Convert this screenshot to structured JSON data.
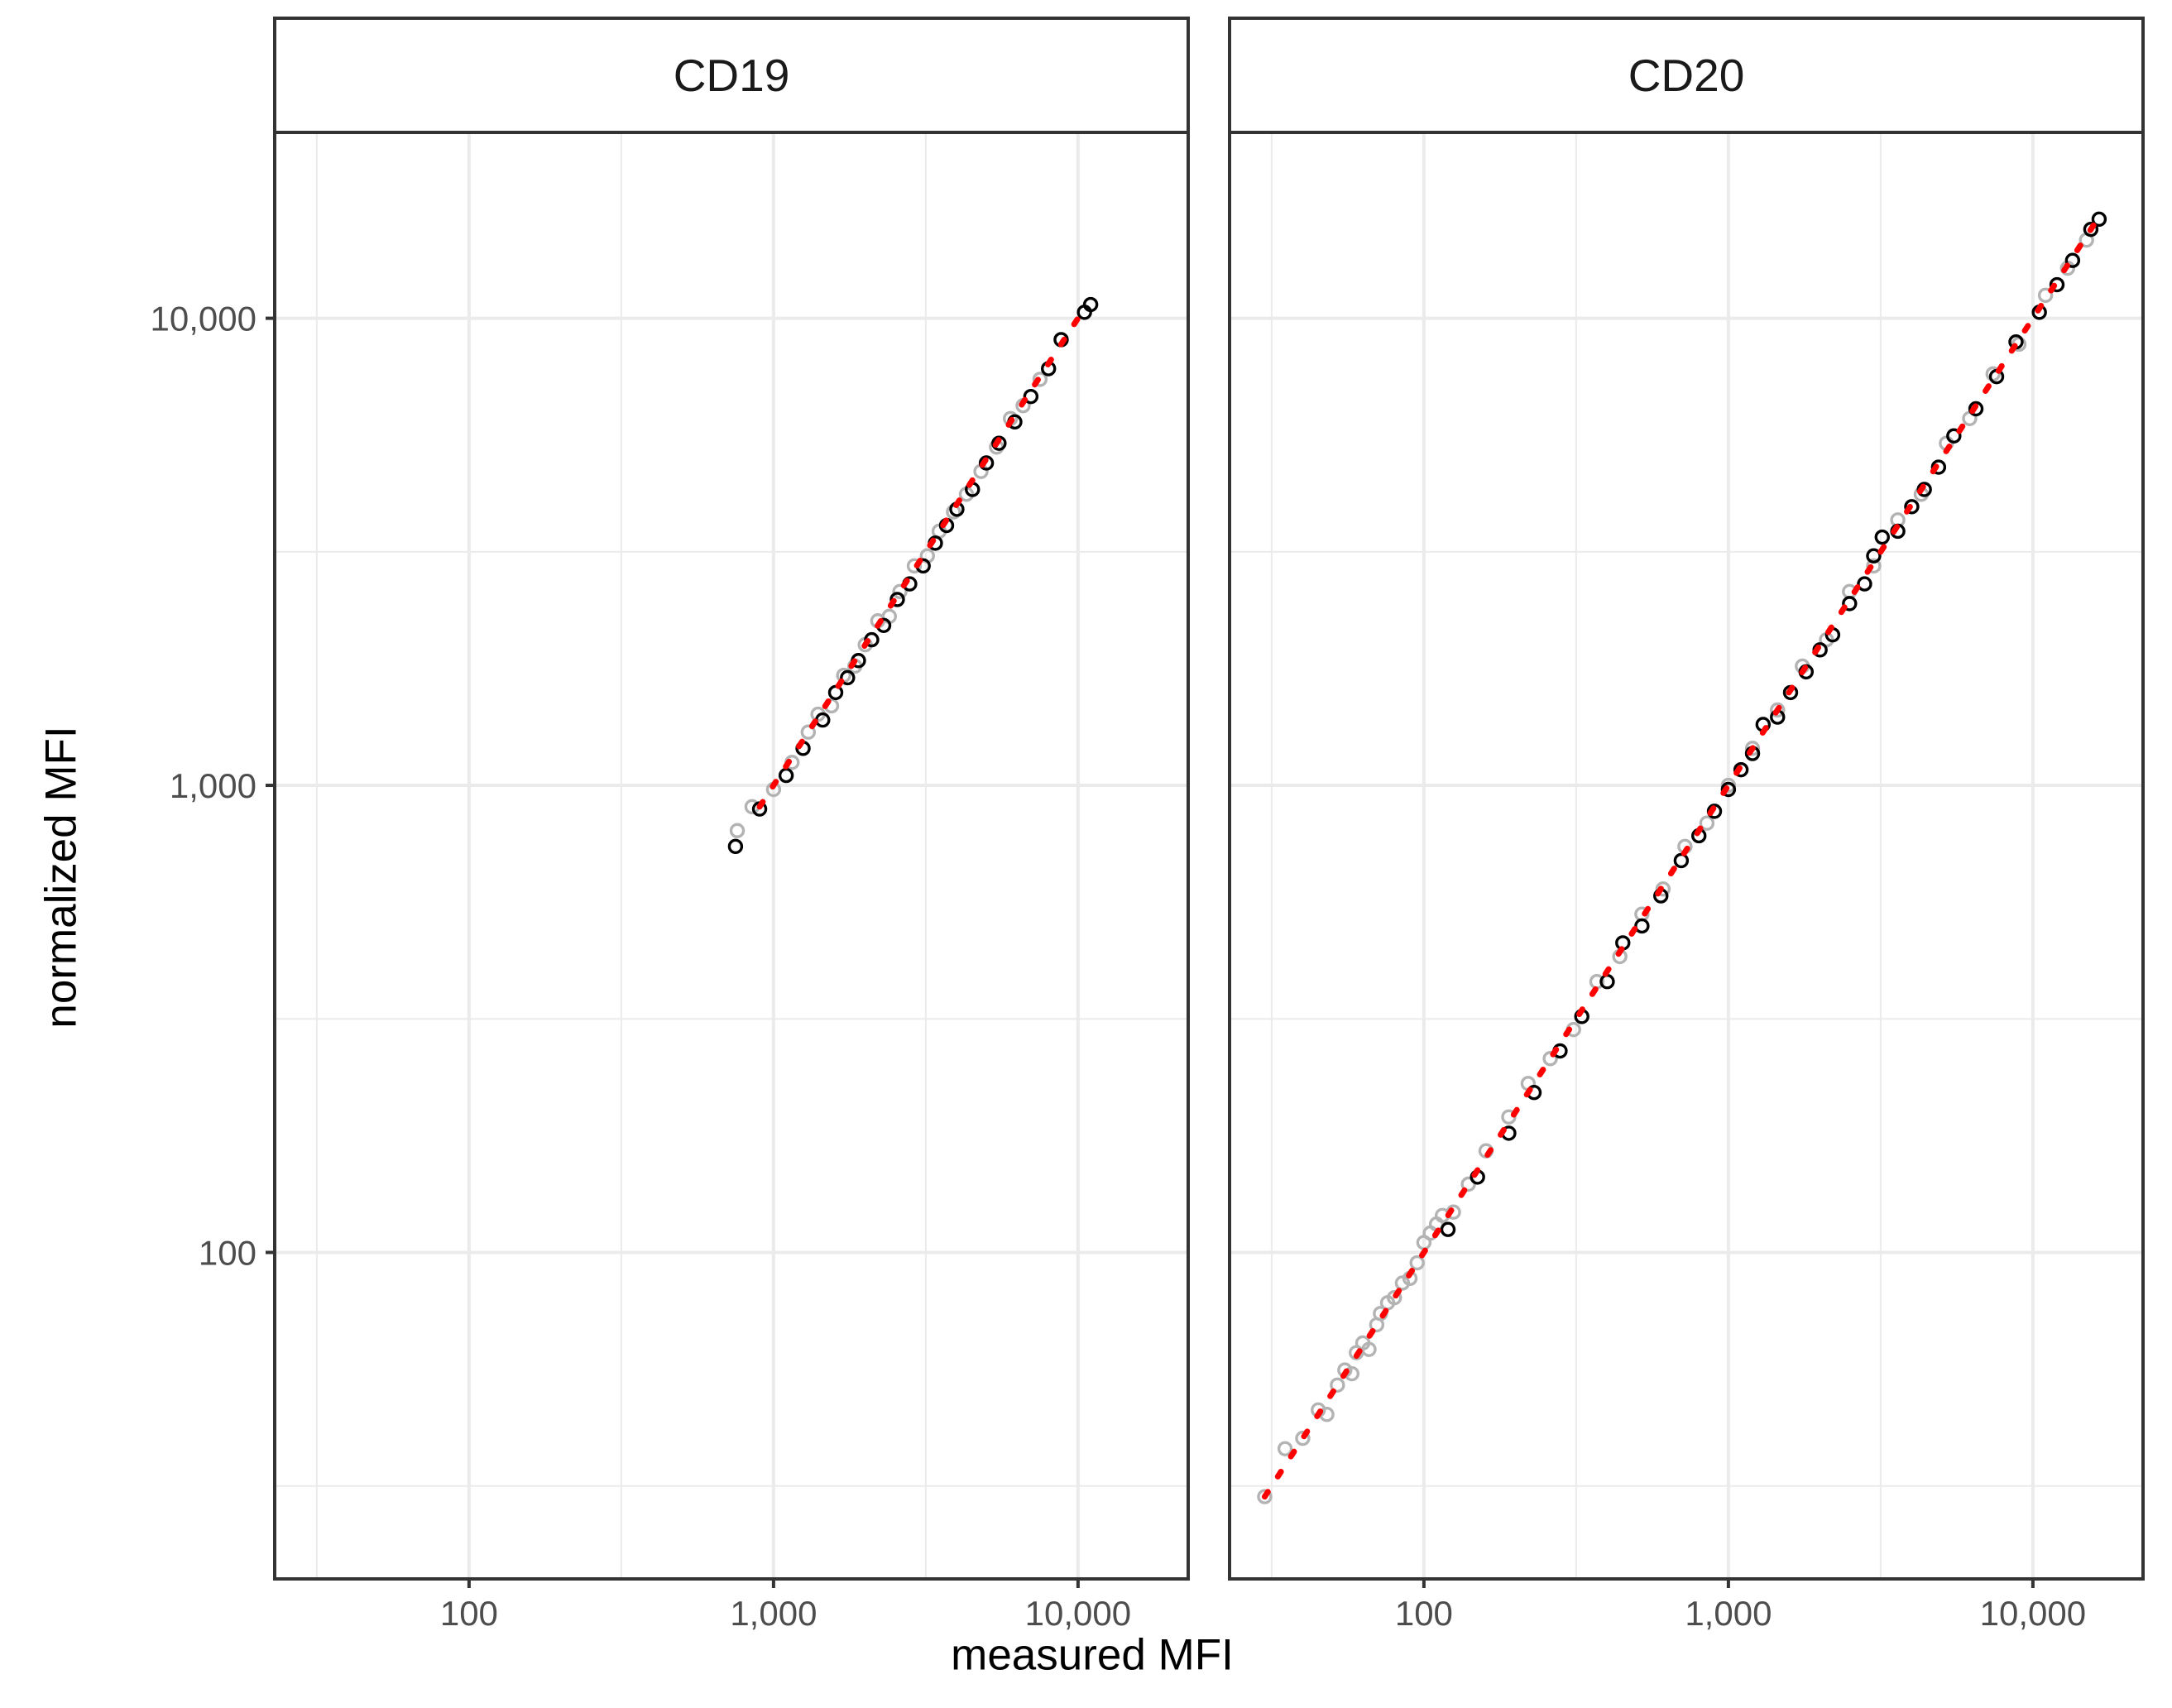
{
  "chart_data": {
    "type": "scatter",
    "xlabel": "measured MFI",
    "ylabel": "normalized MFI",
    "x_scale": "log10",
    "y_scale": "log10",
    "xlim": [
      23,
      23000
    ],
    "ylim": [
      20,
      25000
    ],
    "x_ticks": [
      100,
      1000,
      10000
    ],
    "x_tick_labels": [
      "100",
      "1,000",
      "10,000"
    ],
    "y_ticks": [
      100,
      1000,
      10000
    ],
    "y_tick_labels": [
      "100",
      "1,000",
      "10,000"
    ],
    "grid": true,
    "legend": "none",
    "colors": {
      "series_dark": "#000000",
      "series_light": "#b3b3b3",
      "fit_line": "#ff0000",
      "grid": "#ebebeb",
      "panel_border": "#333333"
    },
    "panels": [
      {
        "title": "CD19",
        "x_range_data": [
          750,
          11000
        ],
        "fit_line": {
          "x_start": 900,
          "x_end": 10000
        },
        "series": [
          {
            "color": "#000000",
            "points": [
              [
                750,
                740
              ],
              [
                900,
                890
              ],
              [
                1100,
                1050
              ],
              [
                1250,
                1200
              ],
              [
                1450,
                1380
              ],
              [
                1600,
                1580
              ],
              [
                1750,
                1700
              ],
              [
                1900,
                1850
              ],
              [
                2100,
                2050
              ],
              [
                2300,
                2200
              ],
              [
                2550,
                2500
              ],
              [
                2800,
                2700
              ],
              [
                3100,
                2950
              ],
              [
                3400,
                3300
              ],
              [
                3700,
                3600
              ],
              [
                4000,
                3900
              ],
              [
                4500,
                4300
              ],
              [
                5000,
                4900
              ],
              [
                5500,
                5400
              ],
              [
                6200,
                6000
              ],
              [
                7000,
                6800
              ],
              [
                8000,
                7800
              ],
              [
                8800,
                9000
              ],
              [
                10500,
                10300
              ],
              [
                11000,
                10700
              ]
            ]
          },
          {
            "color": "#b3b3b3",
            "points": [
              [
                760,
                800
              ],
              [
                850,
                900
              ],
              [
                1000,
                980
              ],
              [
                1150,
                1120
              ],
              [
                1300,
                1300
              ],
              [
                1400,
                1420
              ],
              [
                1550,
                1480
              ],
              [
                1700,
                1720
              ],
              [
                1850,
                1800
              ],
              [
                2000,
                2000
              ],
              [
                2200,
                2250
              ],
              [
                2400,
                2300
              ],
              [
                2600,
                2600
              ],
              [
                2900,
                2950
              ],
              [
                3200,
                3100
              ],
              [
                3500,
                3500
              ],
              [
                3900,
                3850
              ],
              [
                4300,
                4200
              ],
              [
                4800,
                4700
              ],
              [
                5400,
                5300
              ],
              [
                6000,
                6100
              ],
              [
                6600,
                6500
              ],
              [
                7500,
                7400
              ]
            ]
          }
        ]
      },
      {
        "title": "CD20",
        "x_range_data": [
          30,
          17000
        ],
        "fit_line": {
          "x_start": 30,
          "x_end": 16500
        },
        "series": [
          {
            "color": "#000000",
            "points": [
              [
                120,
                112
              ],
              [
                150,
                145
              ],
              [
                190,
                180
              ],
              [
                230,
                220
              ],
              [
                280,
                270
              ],
              [
                330,
                320
              ],
              [
                400,
                380
              ],
              [
                450,
                460
              ],
              [
                520,
                500
              ],
              [
                600,
                580
              ],
              [
                700,
                690
              ],
              [
                800,
                780
              ],
              [
                900,
                880
              ],
              [
                1000,
                980
              ],
              [
                1100,
                1080
              ],
              [
                1200,
                1170
              ],
              [
                1300,
                1350
              ],
              [
                1450,
                1400
              ],
              [
                1600,
                1580
              ],
              [
                1800,
                1750
              ],
              [
                2000,
                1950
              ],
              [
                2200,
                2100
              ],
              [
                2500,
                2450
              ],
              [
                2800,
                2700
              ],
              [
                3000,
                3100
              ],
              [
                3200,
                3400
              ],
              [
                3600,
                3500
              ],
              [
                4000,
                3950
              ],
              [
                4400,
                4300
              ],
              [
                4900,
                4800
              ],
              [
                5500,
                5600
              ],
              [
                6500,
                6400
              ],
              [
                7600,
                7500
              ],
              [
                8800,
                8900
              ],
              [
                10500,
                10300
              ],
              [
                12000,
                11800
              ],
              [
                13500,
                13300
              ],
              [
                15500,
                15500
              ],
              [
                16500,
                16300
              ]
            ]
          },
          {
            "color": "#b3b3b3",
            "points": [
              [
                30,
                30
              ],
              [
                35,
                38
              ],
              [
                40,
                40
              ],
              [
                45,
                46
              ],
              [
                48,
                45
              ],
              [
                52,
                52
              ],
              [
                55,
                56
              ],
              [
                58,
                55
              ],
              [
                60,
                61
              ],
              [
                63,
                64
              ],
              [
                66,
                62
              ],
              [
                70,
                70
              ],
              [
                72,
                74
              ],
              [
                76,
                78
              ],
              [
                80,
                80
              ],
              [
                85,
                86
              ],
              [
                90,
                88
              ],
              [
                95,
                95
              ],
              [
                100,
                105
              ],
              [
                105,
                110
              ],
              [
                110,
                115
              ],
              [
                115,
                120
              ],
              [
                125,
                122
              ],
              [
                140,
                140
              ],
              [
                160,
                165
              ],
              [
                190,
                195
              ],
              [
                220,
                230
              ],
              [
                260,
                260
              ],
              [
                310,
                300
              ],
              [
                370,
                380
              ],
              [
                440,
                430
              ],
              [
                520,
                530
              ],
              [
                610,
                600
              ],
              [
                720,
                740
              ],
              [
                850,
                830
              ],
              [
                1000,
                1000
              ],
              [
                1200,
                1200
              ],
              [
                1450,
                1450
              ],
              [
                1750,
                1800
              ],
              [
                2100,
                2050
              ],
              [
                2500,
                2600
              ],
              [
                3000,
                2950
              ],
              [
                3600,
                3700
              ],
              [
                4300,
                4200
              ],
              [
                5200,
                5400
              ],
              [
                6200,
                6100
              ],
              [
                7400,
                7600
              ],
              [
                9000,
                8800
              ],
              [
                11000,
                11200
              ],
              [
                13000,
                12800
              ],
              [
                15000,
                14700
              ]
            ]
          }
        ]
      }
    ]
  }
}
